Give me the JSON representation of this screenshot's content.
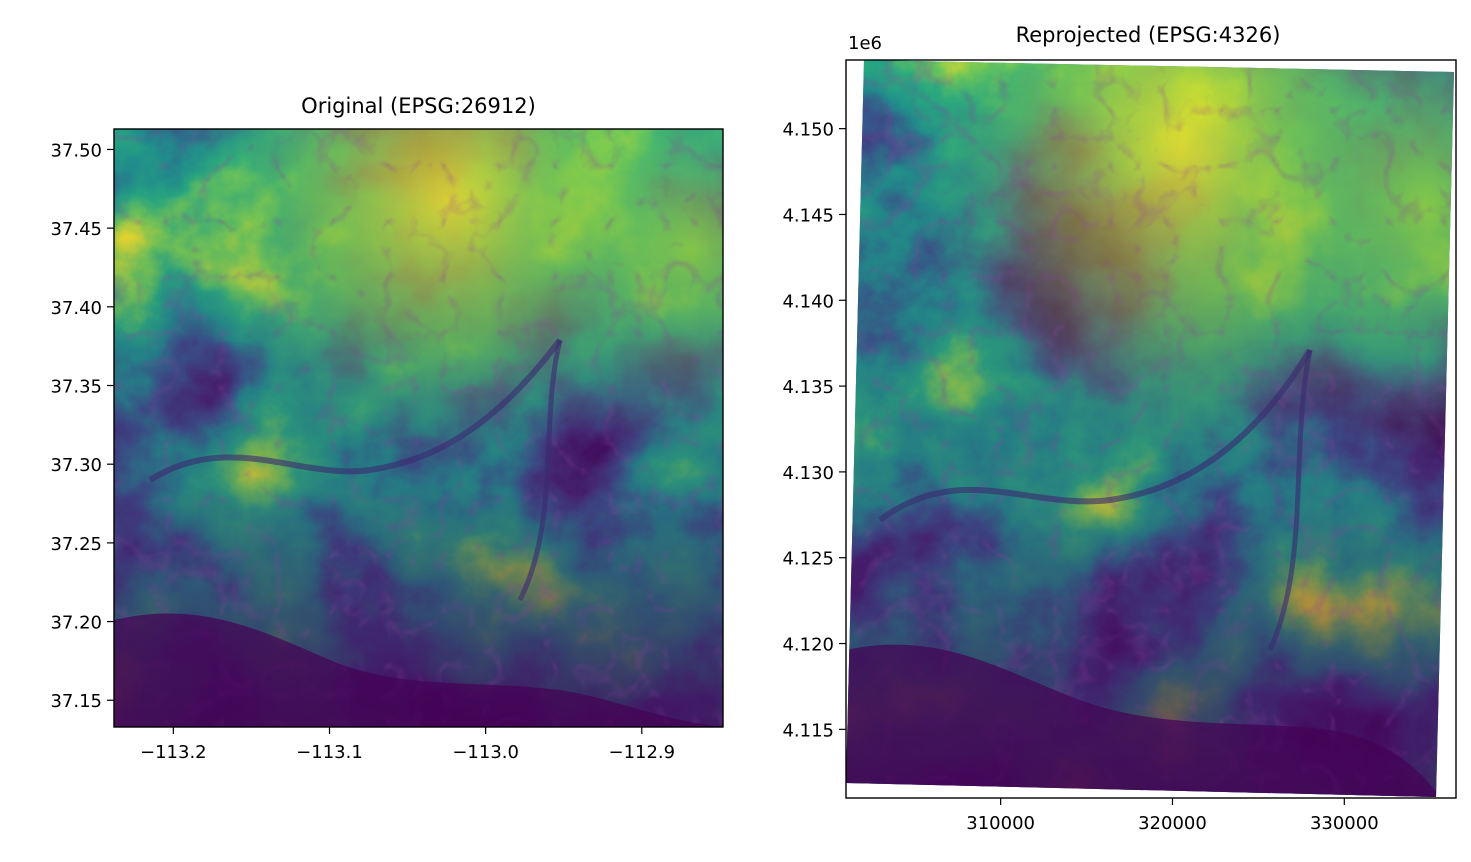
{
  "chart_data": [
    {
      "type": "heatmap",
      "title": "Original (EPSG:26912)",
      "xlabel": "",
      "ylabel": "",
      "colormap": "viridis",
      "xlim": [
        -113.238,
        -112.848
      ],
      "ylim": [
        37.133,
        37.513
      ],
      "xticks": [
        -113.2,
        -113.1,
        -113.0,
        -112.9
      ],
      "xtick_labels": [
        "−113.2",
        "−113.1",
        "−113.0",
        "−112.9"
      ],
      "yticks": [
        37.15,
        37.2,
        37.25,
        37.3,
        37.35,
        37.4,
        37.45,
        37.5
      ],
      "ytick_labels": [
        "37.15",
        "37.20",
        "37.25",
        "37.30",
        "37.35",
        "37.40",
        "37.45",
        "37.50"
      ],
      "grid": false,
      "colorbar": false
    },
    {
      "type": "heatmap",
      "title": "Reprojected (EPSG:4326)",
      "xlabel": "",
      "ylabel": "",
      "colormap": "viridis",
      "y_offset_label": "1e6",
      "xlim": [
        301000,
        336500
      ],
      "ylim": [
        4.111,
        4.154
      ],
      "xticks": [
        310000,
        320000,
        330000
      ],
      "xtick_labels": [
        "310000",
        "320000",
        "330000"
      ],
      "yticks": [
        4.115,
        4.12,
        4.125,
        4.13,
        4.135,
        4.14,
        4.145,
        4.15
      ],
      "ytick_labels": [
        "4.115",
        "4.120",
        "4.125",
        "4.130",
        "4.135",
        "4.140",
        "4.145",
        "4.150"
      ],
      "grid": false,
      "colorbar": false
    }
  ]
}
